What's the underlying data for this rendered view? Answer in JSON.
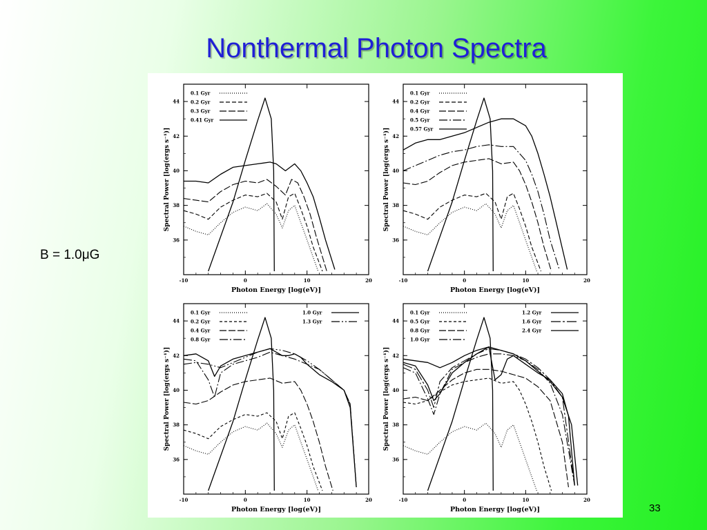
{
  "slide": {
    "title": "Nonthermal Photon Spectra",
    "field_label": "B = 1.0μG",
    "page_number": "33"
  },
  "chart_data": [
    {
      "type": "line",
      "panel": "top-left",
      "xlabel": "Photon Energy [log(eV)]",
      "ylabel": "Spectral Power [log(ergs s⁻¹)]",
      "xlim": [
        -10,
        20
      ],
      "ylim": [
        34,
        45
      ],
      "xticks": [
        "-10",
        "0",
        "10",
        "20"
      ],
      "yticks": [
        "36",
        "38",
        "40",
        "42",
        "44"
      ],
      "legend_position": "top-left",
      "legend_columns": 1,
      "series": [
        {
          "name": "0.1 Gyr",
          "dash": "1,2",
          "x": [
            -10,
            -8,
            -6,
            -4,
            -2,
            0,
            2,
            3.5,
            5,
            6,
            7,
            8,
            9,
            10,
            11,
            11.8
          ],
          "y": [
            36.8,
            36.5,
            36.3,
            37.0,
            37.6,
            37.9,
            37.7,
            38.1,
            37.5,
            36.7,
            37.7,
            38.0,
            37.0,
            36.0,
            35.0,
            34.2
          ]
        },
        {
          "name": "0.2 Gyr",
          "dash": "6,3",
          "x": [
            -10,
            -8,
            -6,
            -4,
            -2,
            0,
            2,
            3.5,
            5,
            6,
            7,
            8,
            9,
            10,
            11,
            12.5
          ],
          "y": [
            37.7,
            37.5,
            37.2,
            37.9,
            38.3,
            38.6,
            38.5,
            38.7,
            38.2,
            37.2,
            38.5,
            38.7,
            37.8,
            36.8,
            35.6,
            34.2
          ]
        },
        {
          "name": "0.3 Gyr",
          "dash": "10,3",
          "x": [
            -10,
            -8,
            -6,
            -4,
            -2,
            0,
            2,
            3.5,
            5,
            6.5,
            7.5,
            8.5,
            9.5,
            10.5,
            11.5,
            13.2
          ],
          "y": [
            38.4,
            38.3,
            38.2,
            38.8,
            39.2,
            39.4,
            39.3,
            39.5,
            39.1,
            38.6,
            39.5,
            39.3,
            38.5,
            37.5,
            36.2,
            34.2
          ]
        },
        {
          "name": "0.41 Gyr",
          "dash": "",
          "x": [
            -10,
            -8,
            -6,
            -4,
            -2,
            0,
            2,
            4,
            5,
            6.5,
            8,
            9,
            10,
            11,
            12,
            13,
            14.5
          ],
          "y": [
            39.4,
            39.4,
            39.3,
            39.8,
            40.2,
            40.3,
            40.4,
            40.5,
            40.4,
            40.0,
            40.4,
            40.0,
            39.3,
            38.5,
            37.3,
            36.0,
            34.3
          ]
        },
        {
          "name": "",
          "dash": "",
          "x": [
            -6,
            -2,
            0,
            2,
            3.2,
            4.2,
            4.6,
            4.7
          ],
          "y": [
            34.2,
            38.2,
            40.6,
            42.9,
            44.2,
            43.0,
            40.0,
            34.2
          ]
        }
      ]
    },
    {
      "type": "line",
      "panel": "top-right",
      "xlabel": "Photon Energy [log(eV)]",
      "ylabel": "Spectral Power [log(ergs s⁻¹)]",
      "xlim": [
        -10,
        20
      ],
      "ylim": [
        34,
        45
      ],
      "xticks": [
        "-10",
        "0",
        "10",
        "20"
      ],
      "yticks": [
        "36",
        "38",
        "40",
        "42",
        "44"
      ],
      "legend_position": "top-left",
      "legend_columns": 1,
      "series": [
        {
          "name": "0.1 Gyr",
          "dash": "1,2",
          "x": [
            -10,
            -8,
            -6,
            -4,
            -2,
            0,
            2,
            3.5,
            5,
            6,
            7,
            8,
            9,
            10,
            11,
            11.8
          ],
          "y": [
            36.8,
            36.5,
            36.3,
            37.0,
            37.6,
            37.9,
            37.7,
            38.1,
            37.5,
            36.7,
            37.7,
            38.0,
            37.0,
            36.0,
            35.0,
            34.2
          ]
        },
        {
          "name": "0.2 Gyr",
          "dash": "6,3",
          "x": [
            -10,
            -8,
            -6,
            -4,
            -2,
            0,
            2,
            3.5,
            5,
            6,
            7,
            8,
            9,
            10,
            11,
            12.5
          ],
          "y": [
            37.7,
            37.5,
            37.2,
            37.9,
            38.3,
            38.6,
            38.5,
            38.7,
            38.2,
            37.2,
            38.5,
            38.7,
            37.8,
            36.8,
            35.6,
            34.2
          ]
        },
        {
          "name": "0.4 Gyr",
          "dash": "10,3",
          "x": [
            -10,
            -8,
            -6,
            -4,
            -2,
            0,
            2,
            4,
            6,
            8,
            9,
            10,
            11,
            12,
            13,
            14.2
          ],
          "y": [
            39.3,
            39.2,
            39.4,
            39.9,
            40.3,
            40.5,
            40.6,
            40.7,
            40.4,
            40.5,
            40.0,
            39.2,
            38.2,
            37.0,
            35.6,
            34.2
          ]
        },
        {
          "name": "0.5 Gyr",
          "dash": "12,3,2,3",
          "x": [
            -10,
            -8,
            -6,
            -4,
            -2,
            0,
            2,
            4,
            6,
            8,
            10,
            11,
            12,
            13,
            14,
            15.5
          ],
          "y": [
            40.0,
            40.3,
            40.6,
            40.9,
            41.1,
            41.2,
            41.4,
            41.5,
            41.4,
            41.4,
            40.6,
            39.8,
            38.8,
            37.5,
            36.0,
            34.3
          ]
        },
        {
          "name": "0.57 Gyr",
          "dash": "",
          "x": [
            -10,
            -8,
            -6,
            -4,
            -2,
            0,
            2,
            4,
            6,
            8,
            10,
            11,
            12,
            13,
            14,
            15,
            16,
            16.8
          ],
          "y": [
            41.2,
            41.6,
            41.8,
            41.8,
            42.0,
            42.2,
            42.5,
            42.8,
            43.0,
            43.0,
            42.6,
            42.0,
            41.0,
            39.8,
            38.5,
            37.0,
            35.5,
            34.3
          ]
        },
        {
          "name": "",
          "dash": "",
          "x": [
            -6,
            -2,
            0,
            2,
            3.2,
            4.2,
            4.6,
            4.7
          ],
          "y": [
            34.2,
            38.2,
            40.6,
            42.9,
            44.2,
            43.0,
            40.0,
            34.2
          ]
        }
      ]
    },
    {
      "type": "line",
      "panel": "bottom-left",
      "xlabel": "Photon Energy [log(eV)]",
      "ylabel": "Spectral Power [log(ergs s⁻¹)]",
      "xlim": [
        -10,
        20
      ],
      "ylim": [
        34,
        45
      ],
      "xticks": [
        "-10",
        "0",
        "10",
        "20"
      ],
      "yticks": [
        "36",
        "38",
        "40",
        "42",
        "44"
      ],
      "legend_position": "top",
      "legend_columns": 2,
      "series": [
        {
          "name": "0.1 Gyr",
          "dash": "1,2",
          "x": [
            -10,
            -8,
            -6,
            -4,
            -2,
            0,
            2,
            3.5,
            5,
            6,
            7,
            8,
            9,
            10,
            11,
            11.8
          ],
          "y": [
            36.8,
            36.5,
            36.3,
            37.0,
            37.6,
            37.9,
            37.7,
            38.1,
            37.5,
            36.7,
            37.7,
            38.0,
            37.0,
            36.0,
            35.0,
            34.2
          ]
        },
        {
          "name": "0.2 Gyr",
          "dash": "4,3",
          "x": [
            -10,
            -8,
            -6,
            -4,
            -2,
            0,
            2,
            3.5,
            5,
            6,
            7,
            8,
            9,
            10,
            11,
            12.5
          ],
          "y": [
            37.7,
            37.5,
            37.2,
            37.9,
            38.3,
            38.6,
            38.5,
            38.7,
            38.2,
            37.2,
            38.5,
            38.7,
            37.8,
            36.8,
            35.6,
            34.2
          ]
        },
        {
          "name": "0.4 Gyr",
          "dash": "10,3",
          "x": [
            -10,
            -8,
            -6,
            -4,
            -2,
            0,
            2,
            4,
            6,
            8,
            9,
            10,
            11,
            12,
            13,
            14.2
          ],
          "y": [
            39.3,
            39.2,
            39.4,
            39.9,
            40.3,
            40.5,
            40.6,
            40.7,
            40.4,
            40.5,
            40.0,
            39.2,
            38.2,
            37.0,
            35.6,
            34.2
          ]
        },
        {
          "name": "0.8 Gyr",
          "dash": "12,3,2,3",
          "x": [
            -10,
            -8,
            -6,
            -5,
            -4,
            -2,
            0,
            2,
            4,
            6,
            8,
            10,
            12,
            14,
            16,
            17,
            18
          ],
          "y": [
            41.8,
            41.7,
            40.6,
            39.6,
            41.0,
            41.5,
            41.7,
            41.9,
            42.2,
            42.0,
            41.8,
            41.5,
            41.2,
            40.6,
            40.0,
            39.2,
            34.4
          ]
        },
        {
          "name": "1.0 Gyr",
          "dash": "",
          "x": [
            -10,
            -8,
            -6,
            -5,
            -4,
            -2,
            0,
            2,
            4,
            6,
            7,
            8,
            9,
            10,
            12,
            14,
            16,
            17,
            18
          ],
          "y": [
            42.0,
            42.1,
            41.7,
            40.8,
            41.4,
            41.8,
            42.0,
            42.2,
            42.4,
            42.0,
            42.0,
            42.1,
            41.9,
            41.5,
            40.9,
            40.5,
            40.0,
            39.0,
            34.4
          ]
        },
        {
          "name": "1.3 Gyr",
          "dash": "12,3,2,3,2,3",
          "x": [
            -10,
            -8,
            -6,
            -4,
            -2,
            0,
            2,
            4,
            6,
            8,
            10,
            12,
            14,
            16,
            17,
            18
          ],
          "y": [
            41.5,
            41.6,
            41.5,
            41.3,
            41.6,
            41.9,
            42.2,
            42.4,
            42.3,
            42.1,
            41.7,
            41.2,
            40.6,
            40.0,
            39.2,
            34.4
          ]
        },
        {
          "name": "",
          "dash": "",
          "x": [
            -6,
            -2,
            0,
            2,
            3.2,
            4.2,
            4.6,
            4.7
          ],
          "y": [
            34.2,
            38.2,
            40.6,
            42.9,
            44.2,
            43.0,
            40.0,
            34.2
          ]
        }
      ]
    },
    {
      "type": "line",
      "panel": "bottom-right",
      "xlabel": "Photon Energy [log(eV)]",
      "ylabel": "Spectral Power [log(ergs s⁻¹)]",
      "xlim": [
        -10,
        20
      ],
      "ylim": [
        34,
        45
      ],
      "xticks": [
        "-10",
        "0",
        "10",
        "20"
      ],
      "yticks": [
        "36",
        "38",
        "40",
        "42",
        "44"
      ],
      "legend_position": "top",
      "legend_columns": 2,
      "series": [
        {
          "name": "0.1 Gyr",
          "dash": "1,2",
          "x": [
            -10,
            -8,
            -6,
            -4,
            -2,
            0,
            2,
            3.5,
            5,
            6,
            7,
            8,
            9,
            10,
            11,
            11.8
          ],
          "y": [
            36.8,
            36.5,
            36.3,
            37.0,
            37.6,
            37.9,
            37.7,
            38.1,
            37.5,
            36.7,
            37.7,
            38.0,
            37.0,
            36.0,
            35.0,
            34.2
          ]
        },
        {
          "name": "0.5 Gyr",
          "dash": "4,3",
          "x": [
            -10,
            -8,
            -6,
            -4,
            -2,
            0,
            2,
            4,
            6,
            8,
            9,
            10,
            11,
            12,
            13,
            14.2
          ],
          "y": [
            39.3,
            39.2,
            39.4,
            39.9,
            40.3,
            40.5,
            40.6,
            40.7,
            40.4,
            40.5,
            40.0,
            39.2,
            38.2,
            37.0,
            35.6,
            34.2
          ]
        },
        {
          "name": "0.8 Gyr",
          "dash": "10,3",
          "x": [
            -10,
            -8,
            -6,
            -4,
            -2,
            0,
            2,
            4,
            6,
            8,
            10,
            12,
            14,
            16,
            17
          ],
          "y": [
            39.5,
            39.6,
            39.4,
            40.0,
            40.6,
            41.0,
            41.2,
            41.2,
            41.1,
            40.9,
            40.7,
            40.2,
            39.4,
            37.0,
            34.4
          ]
        },
        {
          "name": "1.0 Gyr",
          "dash": "12,3,2,3",
          "x": [
            -10,
            -8,
            -6,
            -5,
            -4,
            -2,
            0,
            2,
            4,
            6,
            8,
            10,
            12,
            14,
            16,
            18
          ],
          "y": [
            41.3,
            41.0,
            39.5,
            38.6,
            39.8,
            41.2,
            41.6,
            41.9,
            42.1,
            42.1,
            42.0,
            41.7,
            41.2,
            40.4,
            38.6,
            34.5
          ]
        },
        {
          "name": "1.2 Gyr",
          "dash": "",
          "x": [
            -10,
            -8,
            -6,
            -5,
            -4,
            -2,
            0,
            2,
            4,
            5,
            6,
            7,
            8,
            10,
            12,
            14,
            16,
            17,
            18
          ],
          "y": [
            41.6,
            41.4,
            40.3,
            39.4,
            39.8,
            41.0,
            41.6,
            42.1,
            42.5,
            40.6,
            40.9,
            41.8,
            42.0,
            41.5,
            41.0,
            40.6,
            39.8,
            38.5,
            34.5
          ]
        },
        {
          "name": "1.6 Gyr",
          "dash": "14,3,3,3",
          "x": [
            -10,
            -8,
            -6,
            -5,
            -4,
            -2,
            0,
            2,
            4,
            6,
            8,
            10,
            12,
            14,
            16,
            18
          ],
          "y": [
            41.5,
            41.2,
            40.0,
            39.0,
            40.5,
            41.3,
            41.7,
            42.1,
            42.4,
            42.3,
            42.1,
            41.8,
            41.3,
            40.6,
            39.6,
            34.5
          ]
        },
        {
          "name": "2.4 Gyr",
          "dash": "",
          "x": [
            -10,
            -8,
            -6,
            -4,
            -2,
            0,
            2,
            4,
            6,
            8,
            10,
            12,
            14,
            16,
            17.5,
            18.5
          ],
          "y": [
            41.8,
            41.7,
            41.6,
            41.3,
            41.6,
            42.0,
            42.3,
            42.5,
            42.3,
            42.1,
            41.7,
            41.1,
            40.5,
            39.6,
            38.0,
            34.5
          ]
        },
        {
          "name": "",
          "dash": "",
          "x": [
            -6,
            -2,
            0,
            2,
            3.2,
            4.2,
            4.6,
            4.7
          ],
          "y": [
            34.2,
            38.2,
            40.6,
            42.9,
            44.2,
            43.0,
            40.0,
            34.2
          ]
        }
      ]
    }
  ]
}
